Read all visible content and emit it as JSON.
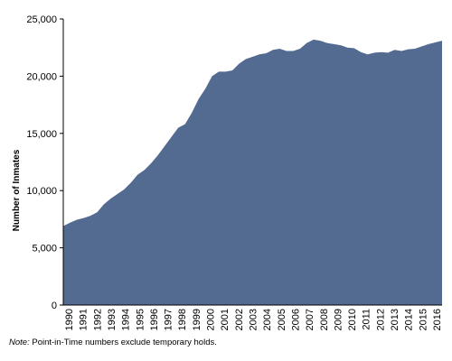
{
  "chart_data": {
    "type": "area",
    "title": "",
    "xlabel": "",
    "ylabel": "Number of Inmates",
    "ylim": [
      0,
      25000
    ],
    "y_ticks": [
      0,
      5000,
      10000,
      15000,
      20000,
      25000
    ],
    "y_tick_labels": [
      "0",
      "5,000",
      "10,000",
      "15,000",
      "20,000",
      "25,000"
    ],
    "x_labels": [
      "1990",
      "1991",
      "1992",
      "1993",
      "1994",
      "1995",
      "1996",
      "1997",
      "1998",
      "1999",
      "2000",
      "2001",
      "2002",
      "2003",
      "2004",
      "2005",
      "2006",
      "2007",
      "2008",
      "2009",
      "2010",
      "2011",
      "2012",
      "2013",
      "2014",
      "2015",
      "2016"
    ],
    "grid": false,
    "colors": {
      "fill": "#536a91",
      "axis": "#000000"
    },
    "series": [
      {
        "values": [
          6900,
          7200,
          7450,
          7600,
          7800,
          8100,
          8800,
          9300,
          9700,
          10100,
          10700,
          11400,
          11800,
          12400,
          13100,
          13900,
          14700,
          15500,
          15800,
          16800,
          18000,
          18900,
          20000,
          20400,
          20400,
          20500,
          21100,
          21500,
          21700,
          21900,
          22000,
          22300,
          22400,
          22200,
          22200,
          22400,
          22900,
          23200,
          23100,
          22900,
          22800,
          22700,
          22500,
          22450,
          22100,
          21900,
          22050,
          22100,
          22050,
          22300,
          22200,
          22350,
          22400,
          22600,
          22800,
          22950,
          23100
        ]
      }
    ]
  },
  "note": {
    "prefix": "Note:",
    "text": " Point-in-Time numbers exclude temporary holds."
  }
}
